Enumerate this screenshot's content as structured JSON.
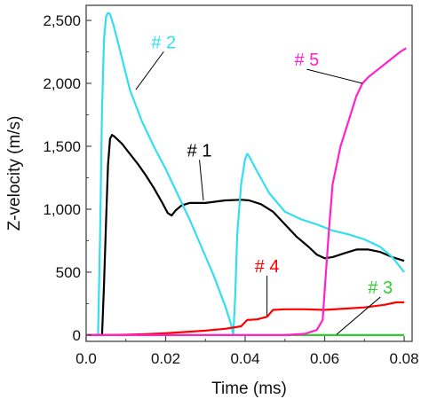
{
  "chart_data": {
    "type": "line",
    "xlabel": "Time (ms)",
    "ylabel": "Z-velocity (m/s)",
    "xlim": [
      0.0,
      0.082
    ],
    "ylim": [
      -50,
      2620
    ],
    "x_ticks": [
      "0.0",
      "0.02",
      "0.04",
      "0.06",
      "0.08"
    ],
    "y_ticks": [
      "0",
      "500",
      "1,000",
      "1,500",
      "2,000",
      "2,500"
    ],
    "x_tick_values": [
      0.0,
      0.02,
      0.04,
      0.06,
      0.08
    ],
    "y_tick_values": [
      0,
      500,
      1000,
      1500,
      2000,
      2500
    ],
    "grid": false,
    "legend": "none",
    "series": [
      {
        "name": "# 1",
        "color": "#000000",
        "points": [
          [
            0.0,
            0
          ],
          [
            0.004,
            0
          ],
          [
            0.0045,
            400
          ],
          [
            0.005,
            900
          ],
          [
            0.0055,
            1350
          ],
          [
            0.006,
            1560
          ],
          [
            0.0065,
            1590
          ],
          [
            0.007,
            1580
          ],
          [
            0.009,
            1520
          ],
          [
            0.011,
            1440
          ],
          [
            0.013,
            1360
          ],
          [
            0.015,
            1270
          ],
          [
            0.017,
            1170
          ],
          [
            0.019,
            1060
          ],
          [
            0.0205,
            970
          ],
          [
            0.0215,
            950
          ],
          [
            0.0225,
            990
          ],
          [
            0.024,
            1030
          ],
          [
            0.026,
            1050
          ],
          [
            0.03,
            1050
          ],
          [
            0.035,
            1070
          ],
          [
            0.039,
            1075
          ],
          [
            0.041,
            1070
          ],
          [
            0.044,
            1040
          ],
          [
            0.047,
            980
          ],
          [
            0.05,
            880
          ],
          [
            0.053,
            780
          ],
          [
            0.056,
            700
          ],
          [
            0.058,
            640
          ],
          [
            0.06,
            610
          ],
          [
            0.062,
            620
          ],
          [
            0.065,
            650
          ],
          [
            0.068,
            680
          ],
          [
            0.071,
            680
          ],
          [
            0.074,
            660
          ],
          [
            0.077,
            620
          ],
          [
            0.08,
            590
          ]
        ]
      },
      {
        "name": "# 2",
        "color": "#33dfee",
        "points": [
          [
            0.0,
            0
          ],
          [
            0.003,
            0
          ],
          [
            0.0035,
            800
          ],
          [
            0.004,
            1800
          ],
          [
            0.0045,
            2350
          ],
          [
            0.005,
            2530
          ],
          [
            0.0055,
            2560
          ],
          [
            0.006,
            2550
          ],
          [
            0.007,
            2450
          ],
          [
            0.009,
            2200
          ],
          [
            0.011,
            1950
          ],
          [
            0.014,
            1700
          ],
          [
            0.017,
            1500
          ],
          [
            0.02,
            1320
          ],
          [
            0.023,
            1120
          ],
          [
            0.026,
            920
          ],
          [
            0.029,
            700
          ],
          [
            0.032,
            480
          ],
          [
            0.035,
            230
          ],
          [
            0.0365,
            80
          ],
          [
            0.037,
            0
          ],
          [
            0.0375,
            300
          ],
          [
            0.038,
            800
          ],
          [
            0.039,
            1200
          ],
          [
            0.04,
            1400
          ],
          [
            0.0405,
            1440
          ],
          [
            0.041,
            1420
          ],
          [
            0.043,
            1300
          ],
          [
            0.046,
            1130
          ],
          [
            0.05,
            980
          ],
          [
            0.054,
            920
          ],
          [
            0.058,
            880
          ],
          [
            0.062,
            830
          ],
          [
            0.066,
            800
          ],
          [
            0.07,
            760
          ],
          [
            0.074,
            700
          ],
          [
            0.077,
            620
          ],
          [
            0.08,
            500
          ]
        ]
      },
      {
        "name": "# 3",
        "color": "#2fce2f",
        "points": [
          [
            0.0,
            0
          ],
          [
            0.06,
            0
          ],
          [
            0.08,
            0
          ]
        ]
      },
      {
        "name": "# 4",
        "color": "#ff0000",
        "points": [
          [
            0.0,
            0
          ],
          [
            0.005,
            0
          ],
          [
            0.01,
            3
          ],
          [
            0.015,
            8
          ],
          [
            0.02,
            15
          ],
          [
            0.025,
            25
          ],
          [
            0.03,
            35
          ],
          [
            0.035,
            50
          ],
          [
            0.039,
            70
          ],
          [
            0.0405,
            120
          ],
          [
            0.043,
            125
          ],
          [
            0.0455,
            145
          ],
          [
            0.047,
            200
          ],
          [
            0.05,
            205
          ],
          [
            0.055,
            205
          ],
          [
            0.06,
            200
          ],
          [
            0.065,
            210
          ],
          [
            0.07,
            220
          ],
          [
            0.075,
            240
          ],
          [
            0.078,
            260
          ],
          [
            0.08,
            260
          ]
        ]
      },
      {
        "name": "# 5",
        "color": "#ff22cc",
        "points": [
          [
            0.0,
            0
          ],
          [
            0.05,
            0
          ],
          [
            0.055,
            10
          ],
          [
            0.058,
            40
          ],
          [
            0.0595,
            120
          ],
          [
            0.06,
            350
          ],
          [
            0.061,
            800
          ],
          [
            0.062,
            1200
          ],
          [
            0.064,
            1500
          ],
          [
            0.066,
            1700
          ],
          [
            0.068,
            1900
          ],
          [
            0.0695,
            2000
          ],
          [
            0.071,
            2050
          ],
          [
            0.073,
            2100
          ],
          [
            0.075,
            2150
          ],
          [
            0.077,
            2200
          ],
          [
            0.079,
            2250
          ],
          [
            0.0805,
            2280
          ]
        ]
      }
    ],
    "annotations": [
      {
        "text": "# 1",
        "color": "#000000",
        "x": 0.0285,
        "y": 1420,
        "point_to": [
          0.0295,
          1070
        ]
      },
      {
        "text": "# 2",
        "color": "#33dfee",
        "x": 0.0195,
        "y": 2280,
        "point_to": [
          0.0125,
          1950
        ]
      },
      {
        "text": "# 3",
        "color": "#2fce2f",
        "x": 0.074,
        "y": 330,
        "point_to": [
          0.063,
          5
        ]
      },
      {
        "text": "# 4",
        "color": "#ff0000",
        "x": 0.0455,
        "y": 500,
        "point_to": [
          0.0455,
          155
        ]
      },
      {
        "text": "# 5",
        "color": "#ff22cc",
        "x": 0.0555,
        "y": 2140,
        "point_to": [
          0.0695,
          2000
        ]
      }
    ]
  }
}
